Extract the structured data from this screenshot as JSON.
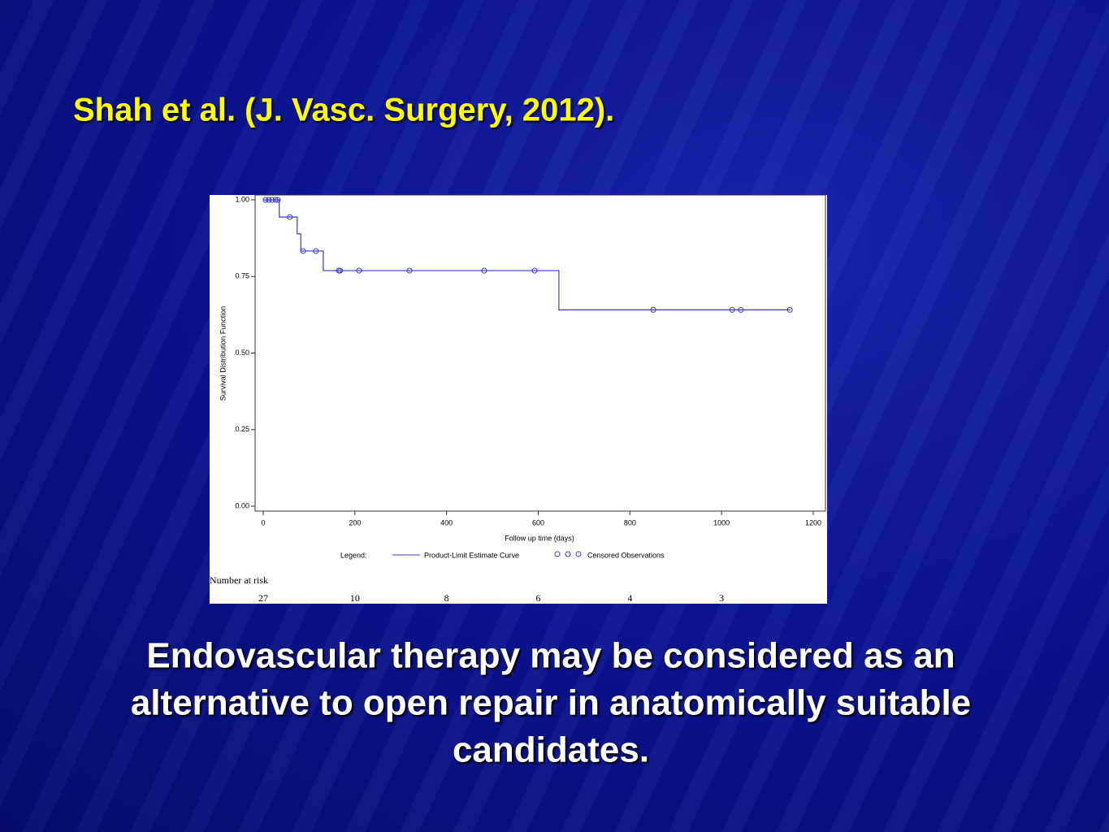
{
  "title": "Shah et al. (J. Vasc. Surgery, 2012).",
  "caption_lines": [
    "Endovascular therapy may be considered as an",
    "alternative to open repair in anatomically suitable",
    "candidates."
  ],
  "chart_data": {
    "type": "step",
    "ylabel": "Survival Distribution Function",
    "xlabel": "Follow up time (days)",
    "xlim": [
      0,
      1200
    ],
    "xticks": [
      0,
      200,
      400,
      600,
      800,
      1000,
      1200
    ],
    "ylim": [
      0,
      1
    ],
    "yticks": [
      {
        "value": 0,
        "label": "0.00"
      },
      {
        "value": 0.25,
        "label": "0.25"
      },
      {
        "value": 0.5,
        "label": "0.50"
      },
      {
        "value": 0.75,
        "label": "0.75"
      },
      {
        "value": 1,
        "label": "1.00"
      }
    ],
    "legend_title": "Legend:",
    "series": [
      {
        "name": "Product-Limit Estimate Curve",
        "color": "#3838d0",
        "x": [
          0,
          35,
          74,
          82,
          131,
          645,
          1150
        ],
        "values": [
          1,
          0.944,
          0.889,
          0.833,
          0.769,
          0.641,
          0.641
        ]
      },
      {
        "name": "Censored Observations",
        "color": "#3838d0",
        "marker": "circle",
        "x": [
          5,
          12,
          19,
          27,
          32,
          58,
          87,
          115,
          165,
          168,
          209,
          319,
          482,
          592,
          851,
          1023,
          1042,
          1149
        ],
        "values": [
          1,
          1,
          1,
          1,
          1,
          0.944,
          0.833,
          0.833,
          0.769,
          0.769,
          0.769,
          0.769,
          0.769,
          0.769,
          0.641,
          0.641,
          0.641,
          0.641
        ]
      }
    ],
    "risk_table": {
      "label": "Number at risk",
      "values": [
        27,
        10,
        8,
        6,
        4,
        3
      ]
    }
  }
}
